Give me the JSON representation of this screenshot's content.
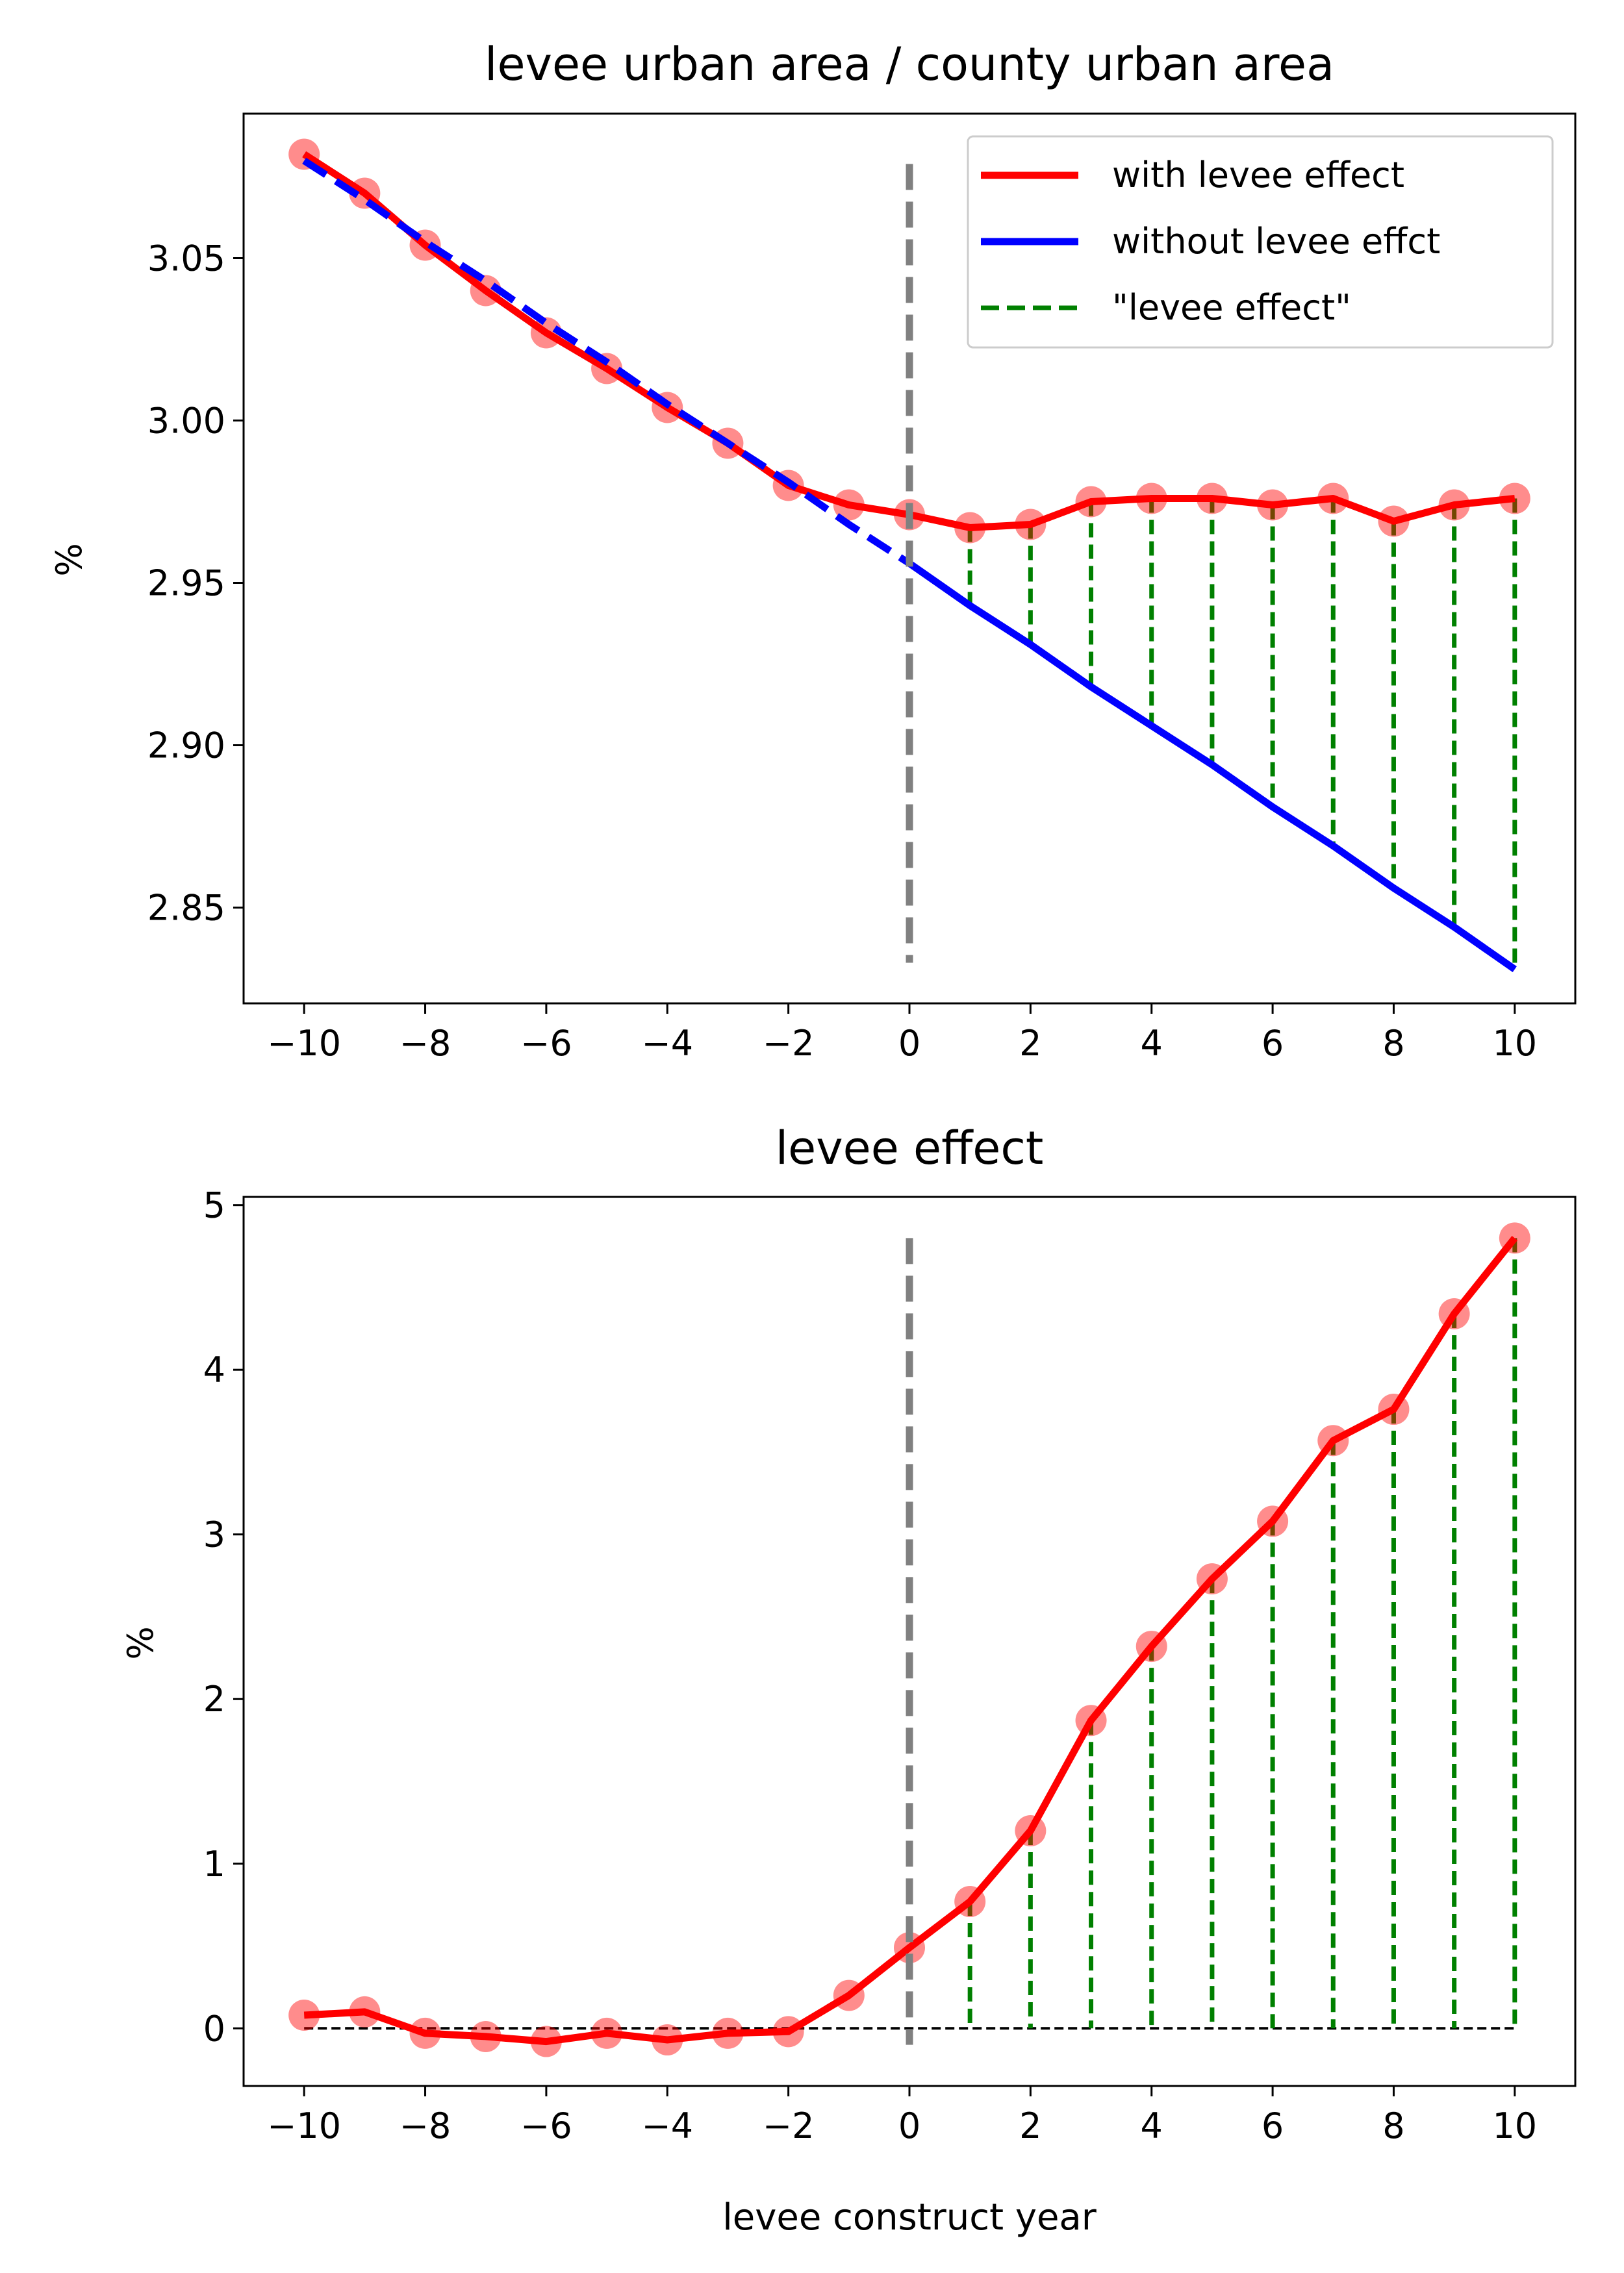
{
  "chart_data": [
    {
      "type": "line",
      "title": "levee urban area / county urban area",
      "xlabel": "",
      "ylabel": "%",
      "xlim": [
        -11,
        11
      ],
      "ylim": [
        2.8205,
        3.0945
      ],
      "xticks": [
        -10,
        -8,
        -6,
        -4,
        -2,
        0,
        2,
        4,
        6,
        8,
        10
      ],
      "xtick_labels": [
        "−10",
        "−8",
        "−6",
        "−4",
        "−2",
        "0",
        "2",
        "4",
        "6",
        "8",
        "10"
      ],
      "yticks": [
        2.85,
        2.9,
        2.95,
        3.0,
        3.05
      ],
      "ytick_labels": [
        "2.85",
        "2.90",
        "2.95",
        "3.00",
        "3.05"
      ],
      "grid": false,
      "legend_position": "top-right",
      "x": [
        -10,
        -9,
        -8,
        -7,
        -6,
        -5,
        -4,
        -3,
        -2,
        -1,
        0,
        1,
        2,
        3,
        4,
        5,
        6,
        7,
        8,
        9,
        10
      ],
      "series": [
        {
          "name": "with levee effect",
          "color": "#ff0000",
          "style": "solid",
          "markers": true,
          "values": [
            3.082,
            3.07,
            3.054,
            3.04,
            3.027,
            3.016,
            3.004,
            2.993,
            2.98,
            2.974,
            2.971,
            2.967,
            2.968,
            2.975,
            2.976,
            2.976,
            2.974,
            2.976,
            2.969,
            2.974,
            2.976
          ]
        },
        {
          "name": "without levee effct",
          "color": "#0000ff",
          "style": "dashed-then-solid",
          "values": [
            3.08,
            3.068,
            3.055,
            3.043,
            3.03,
            3.018,
            3.005,
            2.993,
            2.981,
            2.968,
            2.956,
            2.943,
            2.931,
            2.918,
            2.906,
            2.894,
            2.881,
            2.869,
            2.856,
            2.844,
            2.831
          ]
        },
        {
          "name": "\"levee effect\"",
          "color": "#008000",
          "style": "dashed",
          "description": "vertical segments between series for x >= 1"
        }
      ],
      "vline": {
        "x": 0,
        "y_range": [
          2.833,
          3.079
        ],
        "color": "#808080",
        "style": "dashed"
      }
    },
    {
      "type": "line",
      "title": "levee effect",
      "xlabel": "levee construct year",
      "ylabel": "%",
      "xlim": [
        -11,
        11
      ],
      "ylim": [
        -0.35,
        5.05
      ],
      "xticks": [
        -10,
        -8,
        -6,
        -4,
        -2,
        0,
        2,
        4,
        6,
        8,
        10
      ],
      "xtick_labels": [
        "−10",
        "−8",
        "−6",
        "−4",
        "−2",
        "0",
        "2",
        "4",
        "6",
        "8",
        "10"
      ],
      "yticks": [
        0,
        1,
        2,
        3,
        4,
        5
      ],
      "ytick_labels": [
        "0",
        "1",
        "2",
        "3",
        "4",
        "5"
      ],
      "grid": false,
      "x": [
        -10,
        -9,
        -8,
        -7,
        -6,
        -5,
        -4,
        -3,
        -2,
        -1,
        0,
        1,
        2,
        3,
        4,
        5,
        6,
        7,
        8,
        9,
        10
      ],
      "series": [
        {
          "name": "",
          "color": "#ff0000",
          "style": "solid",
          "markers": true,
          "values": [
            0.08,
            0.1,
            -0.03,
            -0.05,
            -0.08,
            -0.03,
            -0.07,
            -0.03,
            -0.02,
            0.2,
            0.49,
            0.77,
            1.2,
            1.87,
            2.32,
            2.73,
            3.08,
            3.57,
            3.76,
            4.34,
            4.8
          ]
        }
      ],
      "zero_line": {
        "y": 0,
        "color": "#000000",
        "style": "dashed"
      },
      "vline": {
        "x": 0,
        "y_range": [
          -0.1,
          4.8
        ],
        "color": "#808080",
        "style": "dashed"
      }
    }
  ]
}
